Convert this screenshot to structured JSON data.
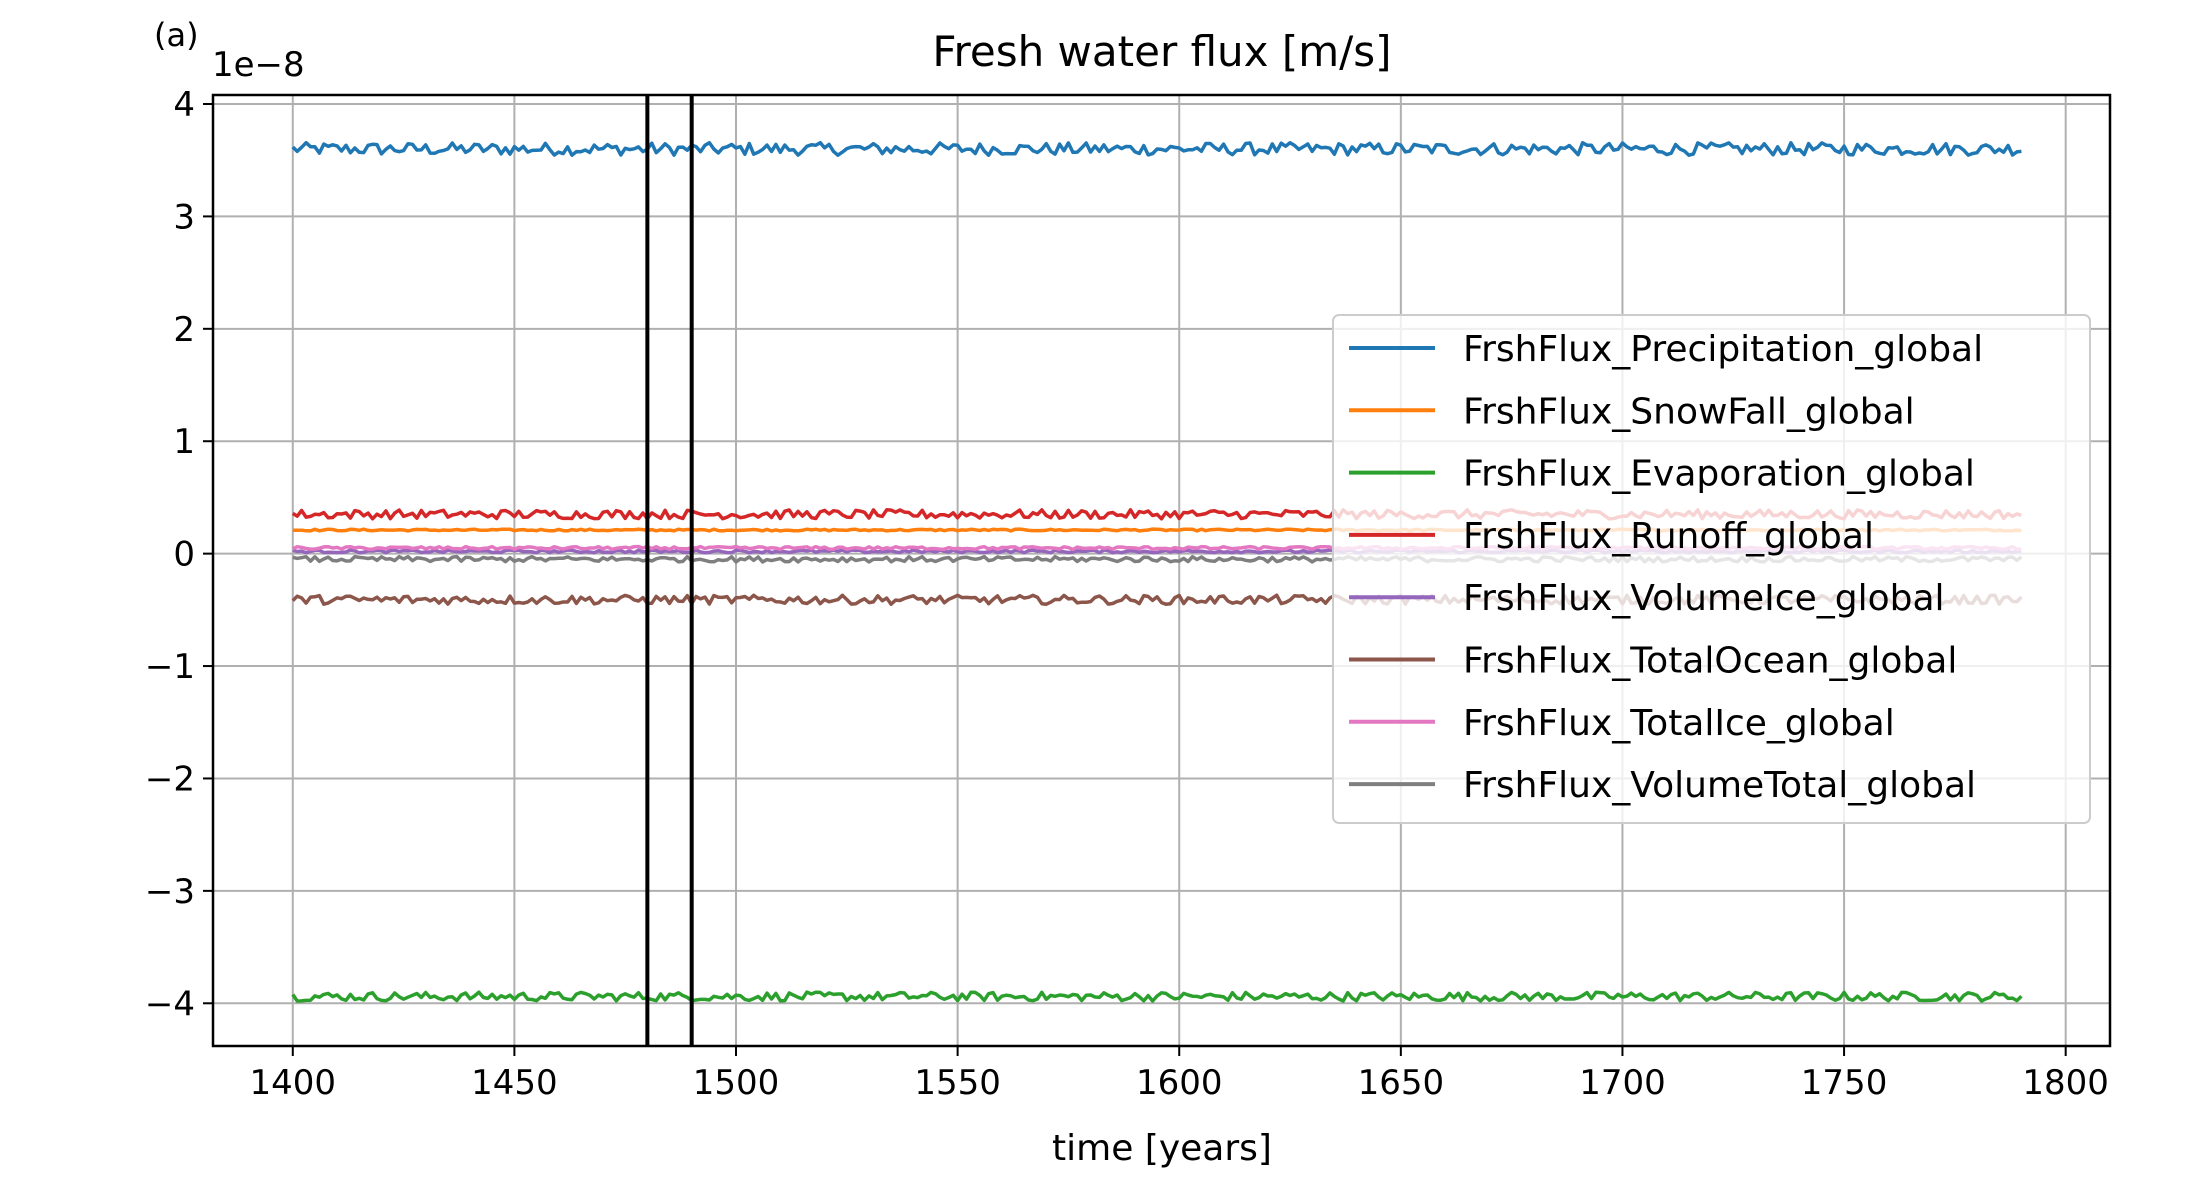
{
  "chart_data": {
    "type": "line",
    "panel_label": "(a)",
    "title": "Fresh water flux [m/s]",
    "xlabel": "time [years]",
    "ylabel": "",
    "y_offset_label": "1e−8",
    "xlim": [
      1382,
      1810
    ],
    "ylim": [
      -4.38,
      4.08
    ],
    "xticks": [
      1400,
      1450,
      1500,
      1550,
      1600,
      1650,
      1700,
      1750,
      1800
    ],
    "yticks": [
      4,
      3,
      2,
      1,
      0,
      -1,
      -2,
      -3,
      -4
    ],
    "ytick_labels": [
      "4",
      "3",
      "2",
      "1",
      "0",
      "−1",
      "−2",
      "−3",
      "−4"
    ],
    "grid": true,
    "legend_position": "center-right",
    "x_range": [
      1400,
      1790
    ],
    "vertical_lines": [
      1480,
      1490
    ],
    "series": [
      {
        "name": "FrshFlux_Precipitation_global",
        "color": "#1f77b4",
        "mean": 3.6,
        "noise": 0.035
      },
      {
        "name": "FrshFlux_SnowFall_global",
        "color": "#ff7f0e",
        "mean": 0.21,
        "noise": 0.005
      },
      {
        "name": "FrshFlux_Evaporation_global",
        "color": "#2ca02c",
        "mean": -3.94,
        "noise": 0.025
      },
      {
        "name": "FrshFlux_Runoff_global",
        "color": "#d62728",
        "mean": 0.35,
        "noise": 0.025
      },
      {
        "name": "FrshFlux_VolumeIce_global",
        "color": "#9467bd",
        "mean": 0.02,
        "noise": 0.008
      },
      {
        "name": "FrshFlux_TotalOcean_global",
        "color": "#8c564b",
        "mean": -0.41,
        "noise": 0.025
      },
      {
        "name": "FrshFlux_TotalIce_global",
        "color": "#e377c2",
        "mean": 0.05,
        "noise": 0.008
      },
      {
        "name": "FrshFlux_VolumeTotal_global",
        "color": "#7f7f7f",
        "mean": -0.05,
        "noise": 0.015
      }
    ]
  }
}
